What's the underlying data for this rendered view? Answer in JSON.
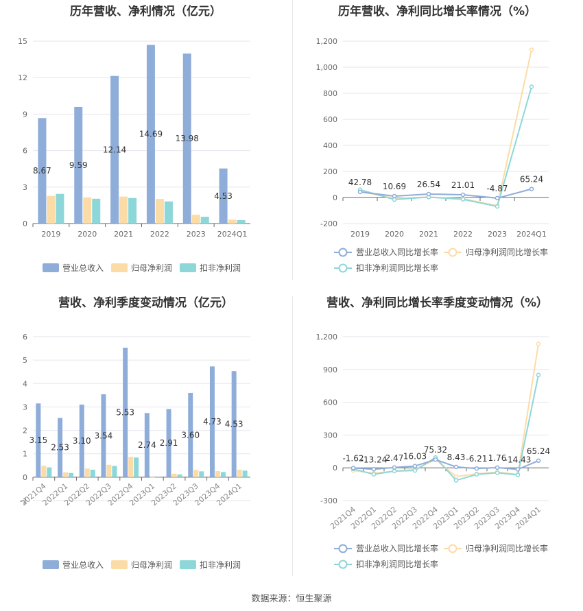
{
  "source_text": "数据来源：恒生聚源",
  "chart_data": [
    {
      "type": "bar",
      "title": "历年营收、净利情况（亿元）",
      "categories": [
        "2019",
        "2020",
        "2021",
        "2022",
        "2023",
        "2024Q1"
      ],
      "ylim": [
        0,
        15
      ],
      "yticks": [
        0,
        3,
        6,
        9,
        12,
        15
      ],
      "series": [
        {
          "name": "营业总收入",
          "color": "#8fadd9",
          "values": [
            8.67,
            9.59,
            12.14,
            14.69,
            13.98,
            4.53
          ],
          "labels": [
            "8.67",
            "9.59",
            "12.14",
            "14.69",
            "13.98",
            "4.53"
          ]
        },
        {
          "name": "归母净利润",
          "color": "#fcdca6",
          "values": [
            2.28,
            2.15,
            2.22,
            2.02,
            0.72,
            0.32
          ]
        },
        {
          "name": "扣非净利润",
          "color": "#8dd7d8",
          "values": [
            2.44,
            2.04,
            2.1,
            1.82,
            0.56,
            0.28
          ]
        }
      ],
      "grid": true,
      "legend": "bottom"
    },
    {
      "type": "line",
      "title": "历年营收、净利同比增长率情况（%）",
      "categories": [
        "2019",
        "2020",
        "2021",
        "2022",
        "2023",
        "2024Q1"
      ],
      "ylim": [
        -200,
        1200
      ],
      "yticks": [
        "-200",
        "0",
        "200",
        "400",
        "600",
        "800",
        "1,000",
        "1,200"
      ],
      "ytick_values": [
        -200,
        0,
        200,
        400,
        600,
        800,
        1000,
        1200
      ],
      "series": [
        {
          "name": "营业总收入同比增长率",
          "color": "#8fadd9",
          "values": [
            42.78,
            10.69,
            26.54,
            21.01,
            -4.87,
            65.24
          ],
          "labels": [
            "42.78",
            "10.69",
            "26.54",
            "21.01",
            "-4.87",
            "65.24"
          ]
        },
        {
          "name": "归母净利润同比增长率",
          "color": "#fcdca6",
          "values": [
            45,
            -5,
            3,
            -9,
            -64,
            1134
          ]
        },
        {
          "name": "扣非净利润同比增长率",
          "color": "#8dd7d8",
          "values": [
            60,
            -16,
            3,
            -14,
            -69,
            850
          ]
        }
      ],
      "grid": true,
      "legend": "bottom"
    },
    {
      "type": "bar",
      "title": "营收、净利季度变动情况（亿元）",
      "categories": [
        "2021Q4",
        "2022Q1",
        "2022Q2",
        "2022Q3",
        "2022Q4",
        "2023Q1",
        "2023Q2",
        "2023Q3",
        "2023Q4",
        "2024Q1"
      ],
      "ylim": [
        -1,
        6
      ],
      "yticks": [
        -1,
        0,
        1,
        2,
        3,
        4,
        5,
        6
      ],
      "series": [
        {
          "name": "营业总收入",
          "color": "#8fadd9",
          "values": [
            3.15,
            2.53,
            3.1,
            3.54,
            5.53,
            2.74,
            2.91,
            3.6,
            4.73,
            4.53
          ],
          "labels": [
            "3.15",
            "2.53",
            "3.10",
            "3.54",
            "5.53",
            "2.74",
            "2.91",
            "3.60",
            "4.73",
            "4.53"
          ]
        },
        {
          "name": "归母净利润",
          "color": "#fcdca6",
          "values": [
            0.49,
            0.21,
            0.37,
            0.53,
            0.87,
            -0.02,
            0.15,
            0.31,
            0.26,
            0.32
          ]
        },
        {
          "name": "扣非净利润",
          "color": "#8dd7d8",
          "values": [
            0.42,
            0.18,
            0.32,
            0.48,
            0.84,
            -0.03,
            0.12,
            0.25,
            0.22,
            0.28
          ]
        }
      ],
      "grid": true,
      "legend": "bottom"
    },
    {
      "type": "line",
      "title": "营收、净利同比增长率季度变动情况（%）",
      "categories": [
        "2021Q4",
        "2022Q1",
        "2022Q2",
        "2022Q3",
        "2022Q4",
        "2023Q1",
        "2023Q2",
        "2023Q3",
        "2023Q4",
        "2024Q1"
      ],
      "ylim": [
        -300,
        1200
      ],
      "yticks": [
        "-300",
        "0",
        "300",
        "600",
        "900",
        "1,200"
      ],
      "ytick_values": [
        -300,
        0,
        300,
        600,
        900,
        1200
      ],
      "series": [
        {
          "name": "营业总收入同比增长率",
          "color": "#8fadd9",
          "values": [
            -1.62,
            -13.24,
            2.47,
            16.03,
            75.32,
            8.43,
            -6.21,
            1.76,
            -14.43,
            65.24
          ],
          "labels": [
            "-1.62",
            "-13.24",
            "2.47",
            "16.03",
            "75.32",
            "8.43",
            "-6.21",
            "1.76",
            "-14.43",
            "65.24"
          ]
        },
        {
          "name": "归母净利润同比增长率",
          "color": "#fcdca6",
          "values": [
            -25,
            -50,
            -30,
            -15,
            75,
            -80,
            -55,
            -40,
            -60,
            1134
          ]
        },
        {
          "name": "扣非净利润同比增长率",
          "color": "#8dd7d8",
          "values": [
            -10,
            -60,
            -30,
            -25,
            95,
            -115,
            -60,
            -45,
            -65,
            850
          ]
        }
      ],
      "grid": true,
      "legend": "bottom"
    }
  ]
}
